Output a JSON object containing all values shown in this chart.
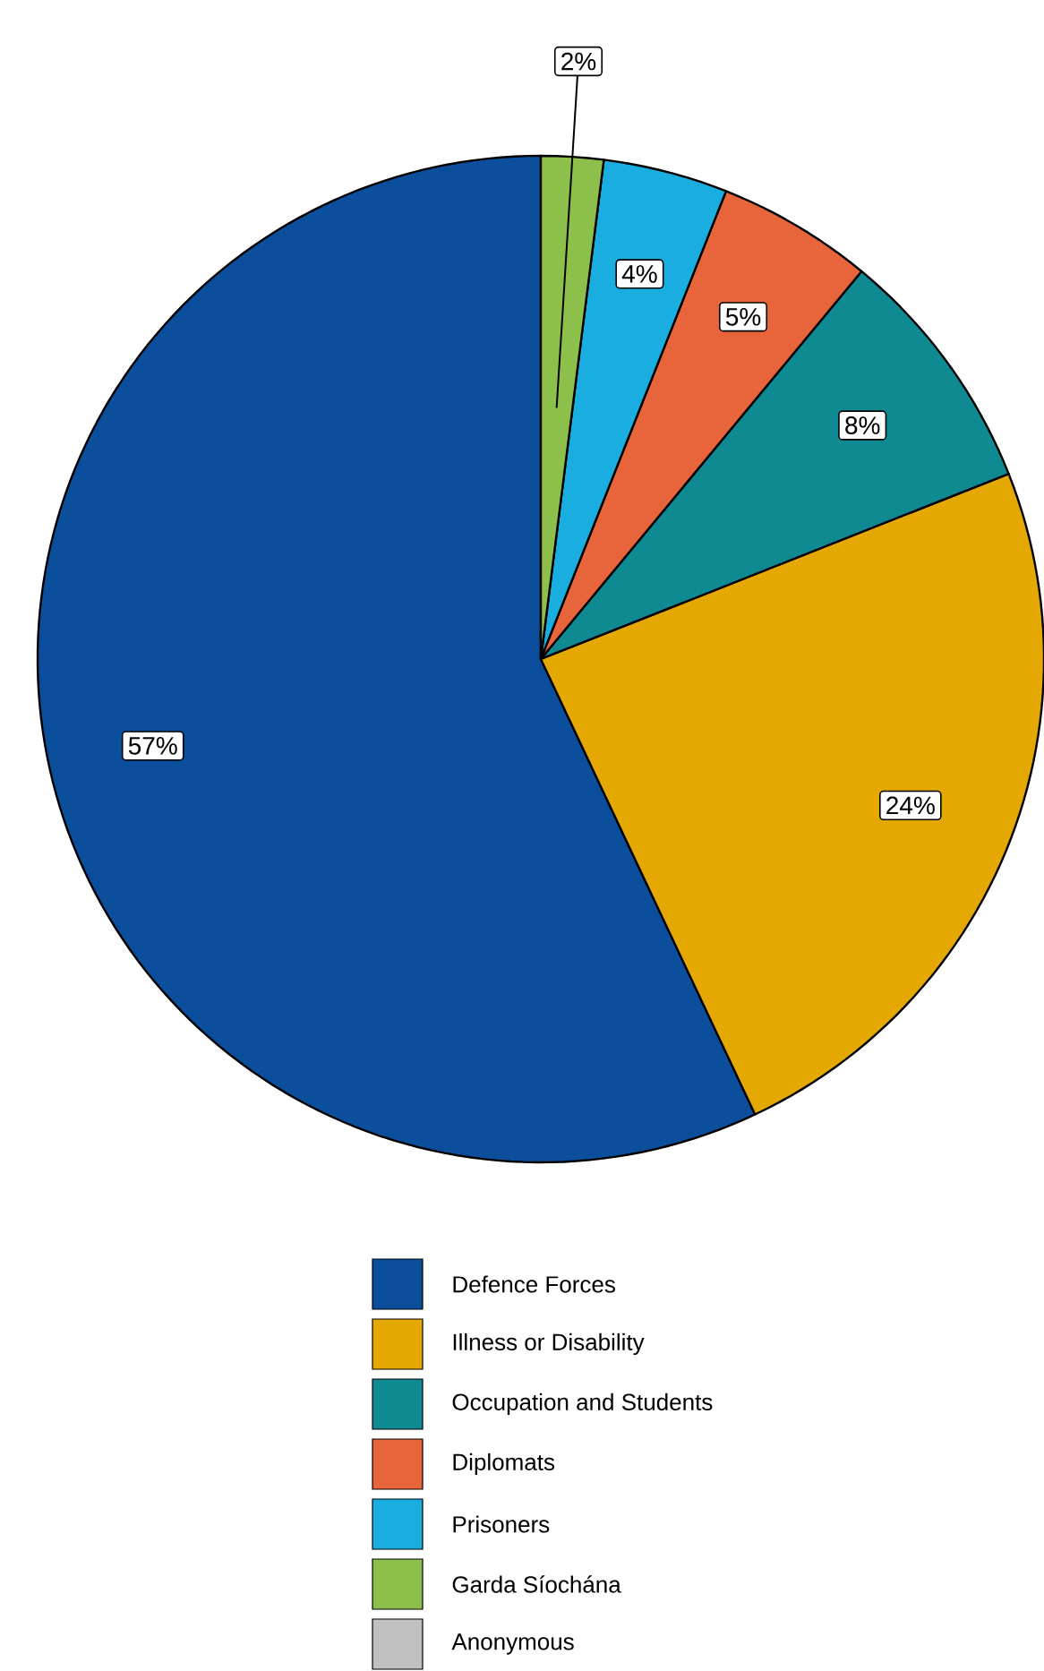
{
  "chart_data": {
    "type": "pie",
    "categories": [
      "Defence Forces",
      "Illness or Disability",
      "Occupation and Students",
      "Diplomats",
      "Prisoners",
      "Garda Síochána",
      "Anonymous"
    ],
    "values": [
      57,
      24,
      8,
      5,
      4,
      2,
      0
    ],
    "colors": [
      "#0b4f9c",
      "#e5a800",
      "#0f8a92",
      "#e8643a",
      "#1aaee0",
      "#8dc04b",
      "#c0c0c0"
    ],
    "value_labels": [
      "57%",
      "24%",
      "8%",
      "5%",
      "4%",
      "2%",
      null
    ],
    "legend": "bottom"
  }
}
